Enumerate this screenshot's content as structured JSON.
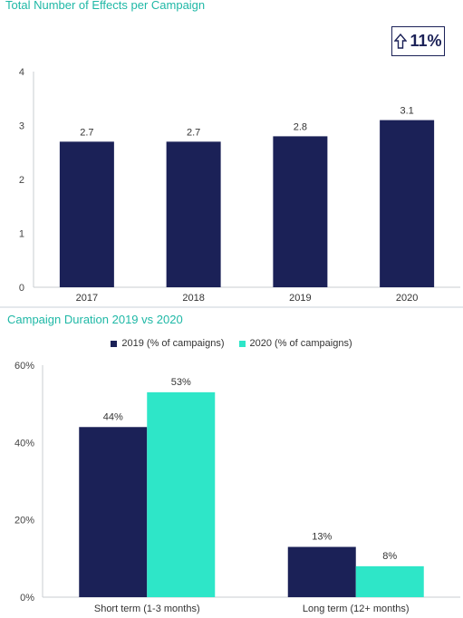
{
  "chart_data": [
    {
      "type": "bar",
      "title": "Total Number of Effects per Campaign",
      "categories": [
        "2017",
        "2018",
        "2019",
        "2020"
      ],
      "values": [
        2.7,
        2.7,
        2.8,
        3.1
      ],
      "data_labels": [
        "2.7",
        "2.7",
        "2.8",
        "3.1"
      ],
      "ylim": [
        0,
        4
      ],
      "yticks": [
        "0",
        "1",
        "2",
        "3",
        "4"
      ],
      "color": "#1b2157",
      "annotation": "11%",
      "grid": false
    },
    {
      "type": "bar",
      "title": "Campaign Duration 2019 vs 2020",
      "categories": [
        "Short term (1-3 months)",
        "Long term (12+ months)"
      ],
      "series": [
        {
          "name": "2019 (% of campaigns)",
          "values": [
            44,
            13
          ],
          "labels": [
            "44%",
            "13%"
          ],
          "color": "#1b2157"
        },
        {
          "name": "2020 (% of campaigns)",
          "values": [
            53,
            8
          ],
          "labels": [
            "53%",
            "8%"
          ],
          "color": "#2ee6c8"
        }
      ],
      "ylim": [
        0,
        60
      ],
      "yticks": [
        "0%",
        "20%",
        "40%",
        "60%"
      ],
      "legend_position": "top-center",
      "grid": false
    }
  ]
}
